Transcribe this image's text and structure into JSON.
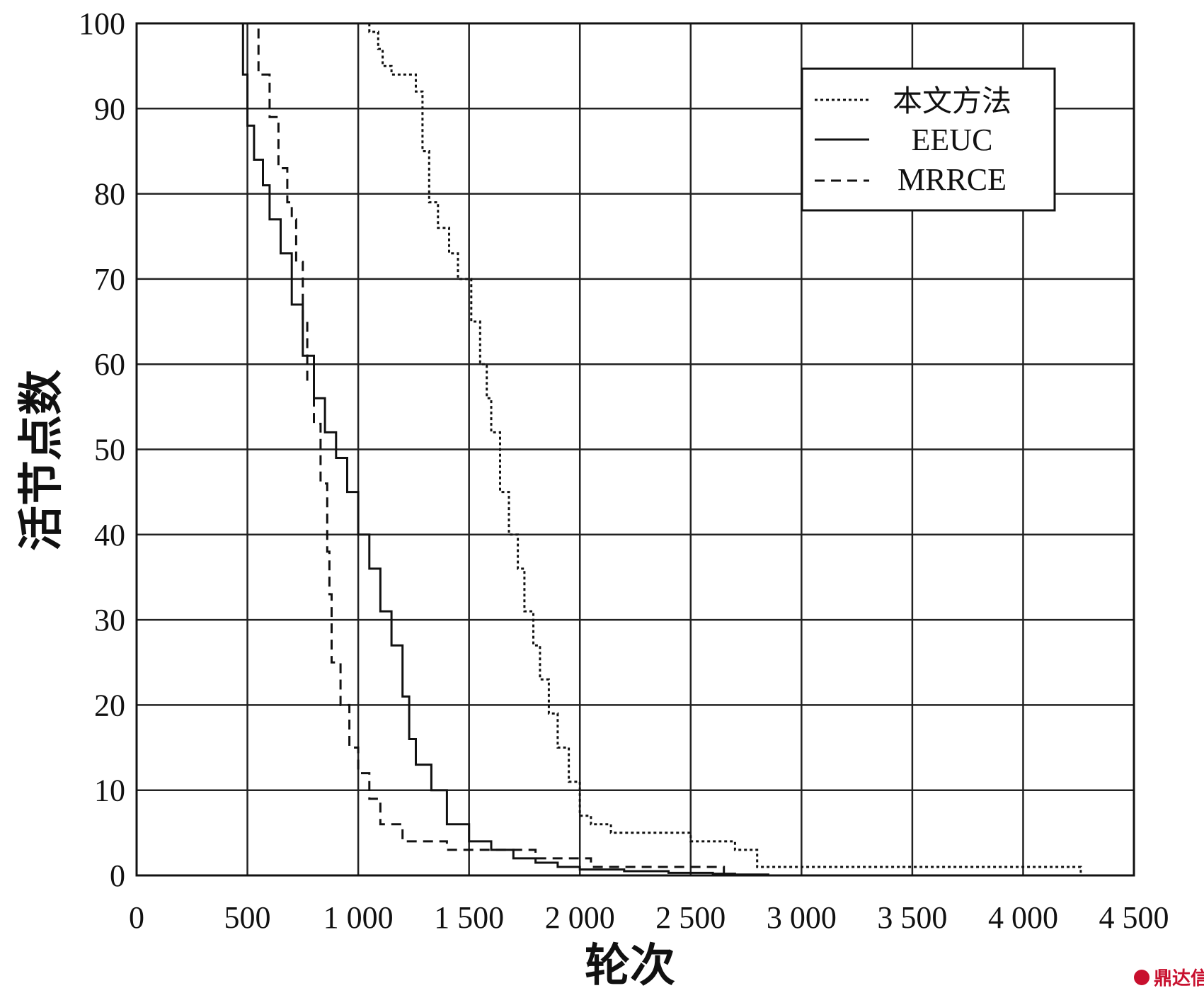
{
  "chart_data": {
    "type": "line",
    "title": "",
    "xlabel": "轮次",
    "ylabel": "活节点数",
    "xlim": [
      0,
      4500
    ],
    "ylim": [
      0,
      100
    ],
    "x_ticks": [
      0,
      500,
      1000,
      1500,
      2000,
      2500,
      3000,
      3500,
      4000,
      4500
    ],
    "x_tick_labels": [
      "0",
      "500",
      "1 000",
      "1 500",
      "2 000",
      "2 500",
      "3 000",
      "3 500",
      "4 000",
      "4 500"
    ],
    "y_ticks": [
      0,
      10,
      20,
      30,
      40,
      50,
      60,
      70,
      80,
      90,
      100
    ],
    "y_tick_labels": [
      "0",
      "10",
      "20",
      "30",
      "40",
      "50",
      "60",
      "70",
      "80",
      "90",
      "100"
    ],
    "grid": true,
    "legend_position": "top-right",
    "series": [
      {
        "name": "本文方法",
        "style": "dotted",
        "points": [
          [
            1000,
            100
          ],
          [
            1050,
            99
          ],
          [
            1090,
            97
          ],
          [
            1110,
            95
          ],
          [
            1150,
            94
          ],
          [
            1260,
            92
          ],
          [
            1290,
            85
          ],
          [
            1320,
            79
          ],
          [
            1360,
            76
          ],
          [
            1410,
            73
          ],
          [
            1450,
            70
          ],
          [
            1510,
            65
          ],
          [
            1550,
            60
          ],
          [
            1580,
            56
          ],
          [
            1600,
            52
          ],
          [
            1640,
            45
          ],
          [
            1680,
            40
          ],
          [
            1720,
            36
          ],
          [
            1750,
            31
          ],
          [
            1790,
            27
          ],
          [
            1820,
            23
          ],
          [
            1860,
            19
          ],
          [
            1900,
            15
          ],
          [
            1950,
            11
          ],
          [
            2000,
            7
          ],
          [
            2050,
            6
          ],
          [
            2140,
            5
          ],
          [
            2300,
            5
          ],
          [
            2500,
            4
          ],
          [
            2700,
            3
          ],
          [
            2800,
            1
          ],
          [
            3500,
            1
          ],
          [
            4250,
            1
          ],
          [
            4260,
            0
          ]
        ]
      },
      {
        "name": "EEUC",
        "style": "solid",
        "points": [
          [
            440,
            100
          ],
          [
            480,
            94
          ],
          [
            500,
            88
          ],
          [
            530,
            84
          ],
          [
            570,
            81
          ],
          [
            600,
            77
          ],
          [
            650,
            73
          ],
          [
            700,
            67
          ],
          [
            750,
            61
          ],
          [
            800,
            56
          ],
          [
            850,
            52
          ],
          [
            900,
            49
          ],
          [
            950,
            45
          ],
          [
            1000,
            40
          ],
          [
            1050,
            36
          ],
          [
            1100,
            31
          ],
          [
            1150,
            27
          ],
          [
            1200,
            21
          ],
          [
            1230,
            16
          ],
          [
            1260,
            13
          ],
          [
            1330,
            10
          ],
          [
            1400,
            6
          ],
          [
            1500,
            4
          ],
          [
            1600,
            3
          ],
          [
            1700,
            2
          ],
          [
            1800,
            1.5
          ],
          [
            1900,
            1
          ],
          [
            2000,
            0.7
          ],
          [
            2200,
            0.5
          ],
          [
            2400,
            0.3
          ],
          [
            2600,
            0.2
          ],
          [
            2700,
            0.1
          ],
          [
            2850,
            0
          ]
        ]
      },
      {
        "name": "MRRCE",
        "style": "dashed",
        "points": [
          [
            500,
            100
          ],
          [
            550,
            94
          ],
          [
            600,
            89
          ],
          [
            640,
            83
          ],
          [
            680,
            79
          ],
          [
            700,
            77
          ],
          [
            720,
            72
          ],
          [
            750,
            65
          ],
          [
            770,
            58
          ],
          [
            800,
            53
          ],
          [
            830,
            46
          ],
          [
            860,
            38
          ],
          [
            870,
            33
          ],
          [
            880,
            25
          ],
          [
            920,
            20
          ],
          [
            960,
            15
          ],
          [
            1000,
            12
          ],
          [
            1050,
            9
          ],
          [
            1100,
            6
          ],
          [
            1200,
            4
          ],
          [
            1300,
            4
          ],
          [
            1400,
            3
          ],
          [
            1600,
            3
          ],
          [
            1800,
            2
          ],
          [
            2050,
            1
          ],
          [
            2500,
            1
          ],
          [
            2650,
            0
          ]
        ]
      }
    ]
  },
  "watermark": {
    "text": "鼎达信",
    "color": "#c8102e"
  }
}
